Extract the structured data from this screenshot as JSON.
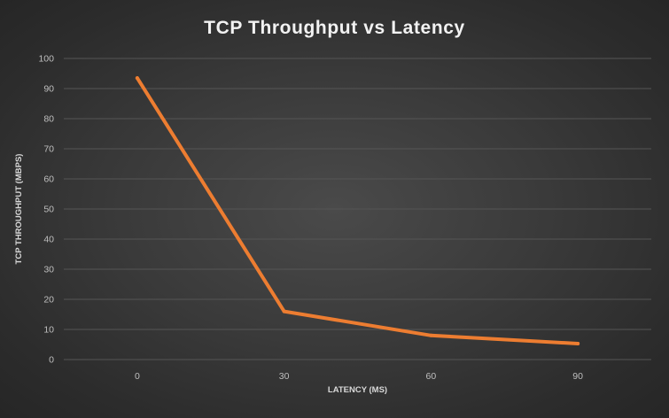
{
  "chart_data": {
    "type": "line",
    "title": "TCP Throughput vs Latency",
    "xlabel": "LATENCY (MS)",
    "ylabel": "TCP THROUGHPUT (MBPS)",
    "categories": [
      "0",
      "30",
      "60",
      "90"
    ],
    "x": [
      0,
      30,
      60,
      90
    ],
    "series": [
      {
        "values": [
          93.5,
          16,
          8,
          5.3
        ]
      }
    ],
    "ylim": [
      0,
      100
    ],
    "yticks": [
      0,
      10,
      20,
      30,
      40,
      50,
      60,
      70,
      80,
      90,
      100
    ],
    "grid": true,
    "legend": "none",
    "colors": {
      "series": "#ed7d31",
      "background": "#3a3a3a",
      "grid": "#555555",
      "text": "#bfbfbf"
    }
  }
}
